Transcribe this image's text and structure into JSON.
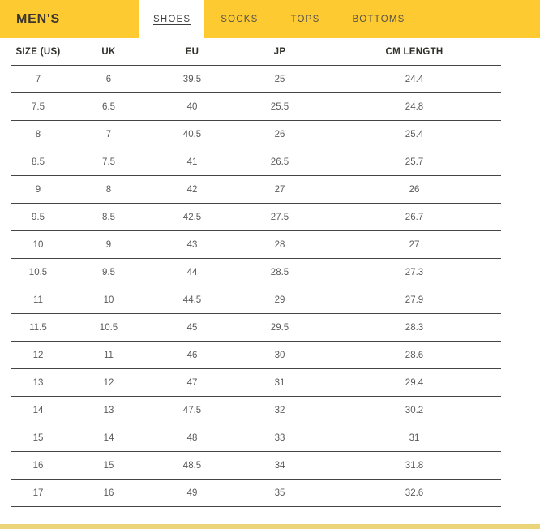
{
  "header": {
    "title": "MEN'S",
    "tabs": [
      {
        "label": "SHOES",
        "active": true
      },
      {
        "label": "SOCKS",
        "active": false
      },
      {
        "label": "TOPS",
        "active": false
      },
      {
        "label": "BOTTOMS",
        "active": false
      }
    ]
  },
  "table": {
    "columns": [
      "SIZE (US)",
      "UK",
      "EU",
      "JP",
      "CM LENGTH"
    ],
    "rows": [
      [
        "7",
        "6",
        "39.5",
        "25",
        "24.4"
      ],
      [
        "7.5",
        "6.5",
        "40",
        "25.5",
        "24.8"
      ],
      [
        "8",
        "7",
        "40.5",
        "26",
        "25.4"
      ],
      [
        "8.5",
        "7.5",
        "41",
        "26.5",
        "25.7"
      ],
      [
        "9",
        "8",
        "42",
        "27",
        "26"
      ],
      [
        "9.5",
        "8.5",
        "42.5",
        "27.5",
        "26.7"
      ],
      [
        "10",
        "9",
        "43",
        "28",
        "27"
      ],
      [
        "10.5",
        "9.5",
        "44",
        "28.5",
        "27.3"
      ],
      [
        "11",
        "10",
        "44.5",
        "29",
        "27.9"
      ],
      [
        "11.5",
        "10.5",
        "45",
        "29.5",
        "28.3"
      ],
      [
        "12",
        "11",
        "46",
        "30",
        "28.6"
      ],
      [
        "13",
        "12",
        "47",
        "31",
        "29.4"
      ],
      [
        "14",
        "13",
        "47.5",
        "32",
        "30.2"
      ],
      [
        "15",
        "14",
        "48",
        "33",
        "31"
      ],
      [
        "16",
        "15",
        "48.5",
        "34",
        "31.8"
      ],
      [
        "17",
        "16",
        "49",
        "35",
        "32.6"
      ]
    ]
  },
  "colors": {
    "header_yellow": "#FDCA32",
    "bottom_strip_yellow": "#ECD579",
    "line_dark": "#454545",
    "title_text": "#3B372E",
    "cell_text": "#595A5C"
  }
}
